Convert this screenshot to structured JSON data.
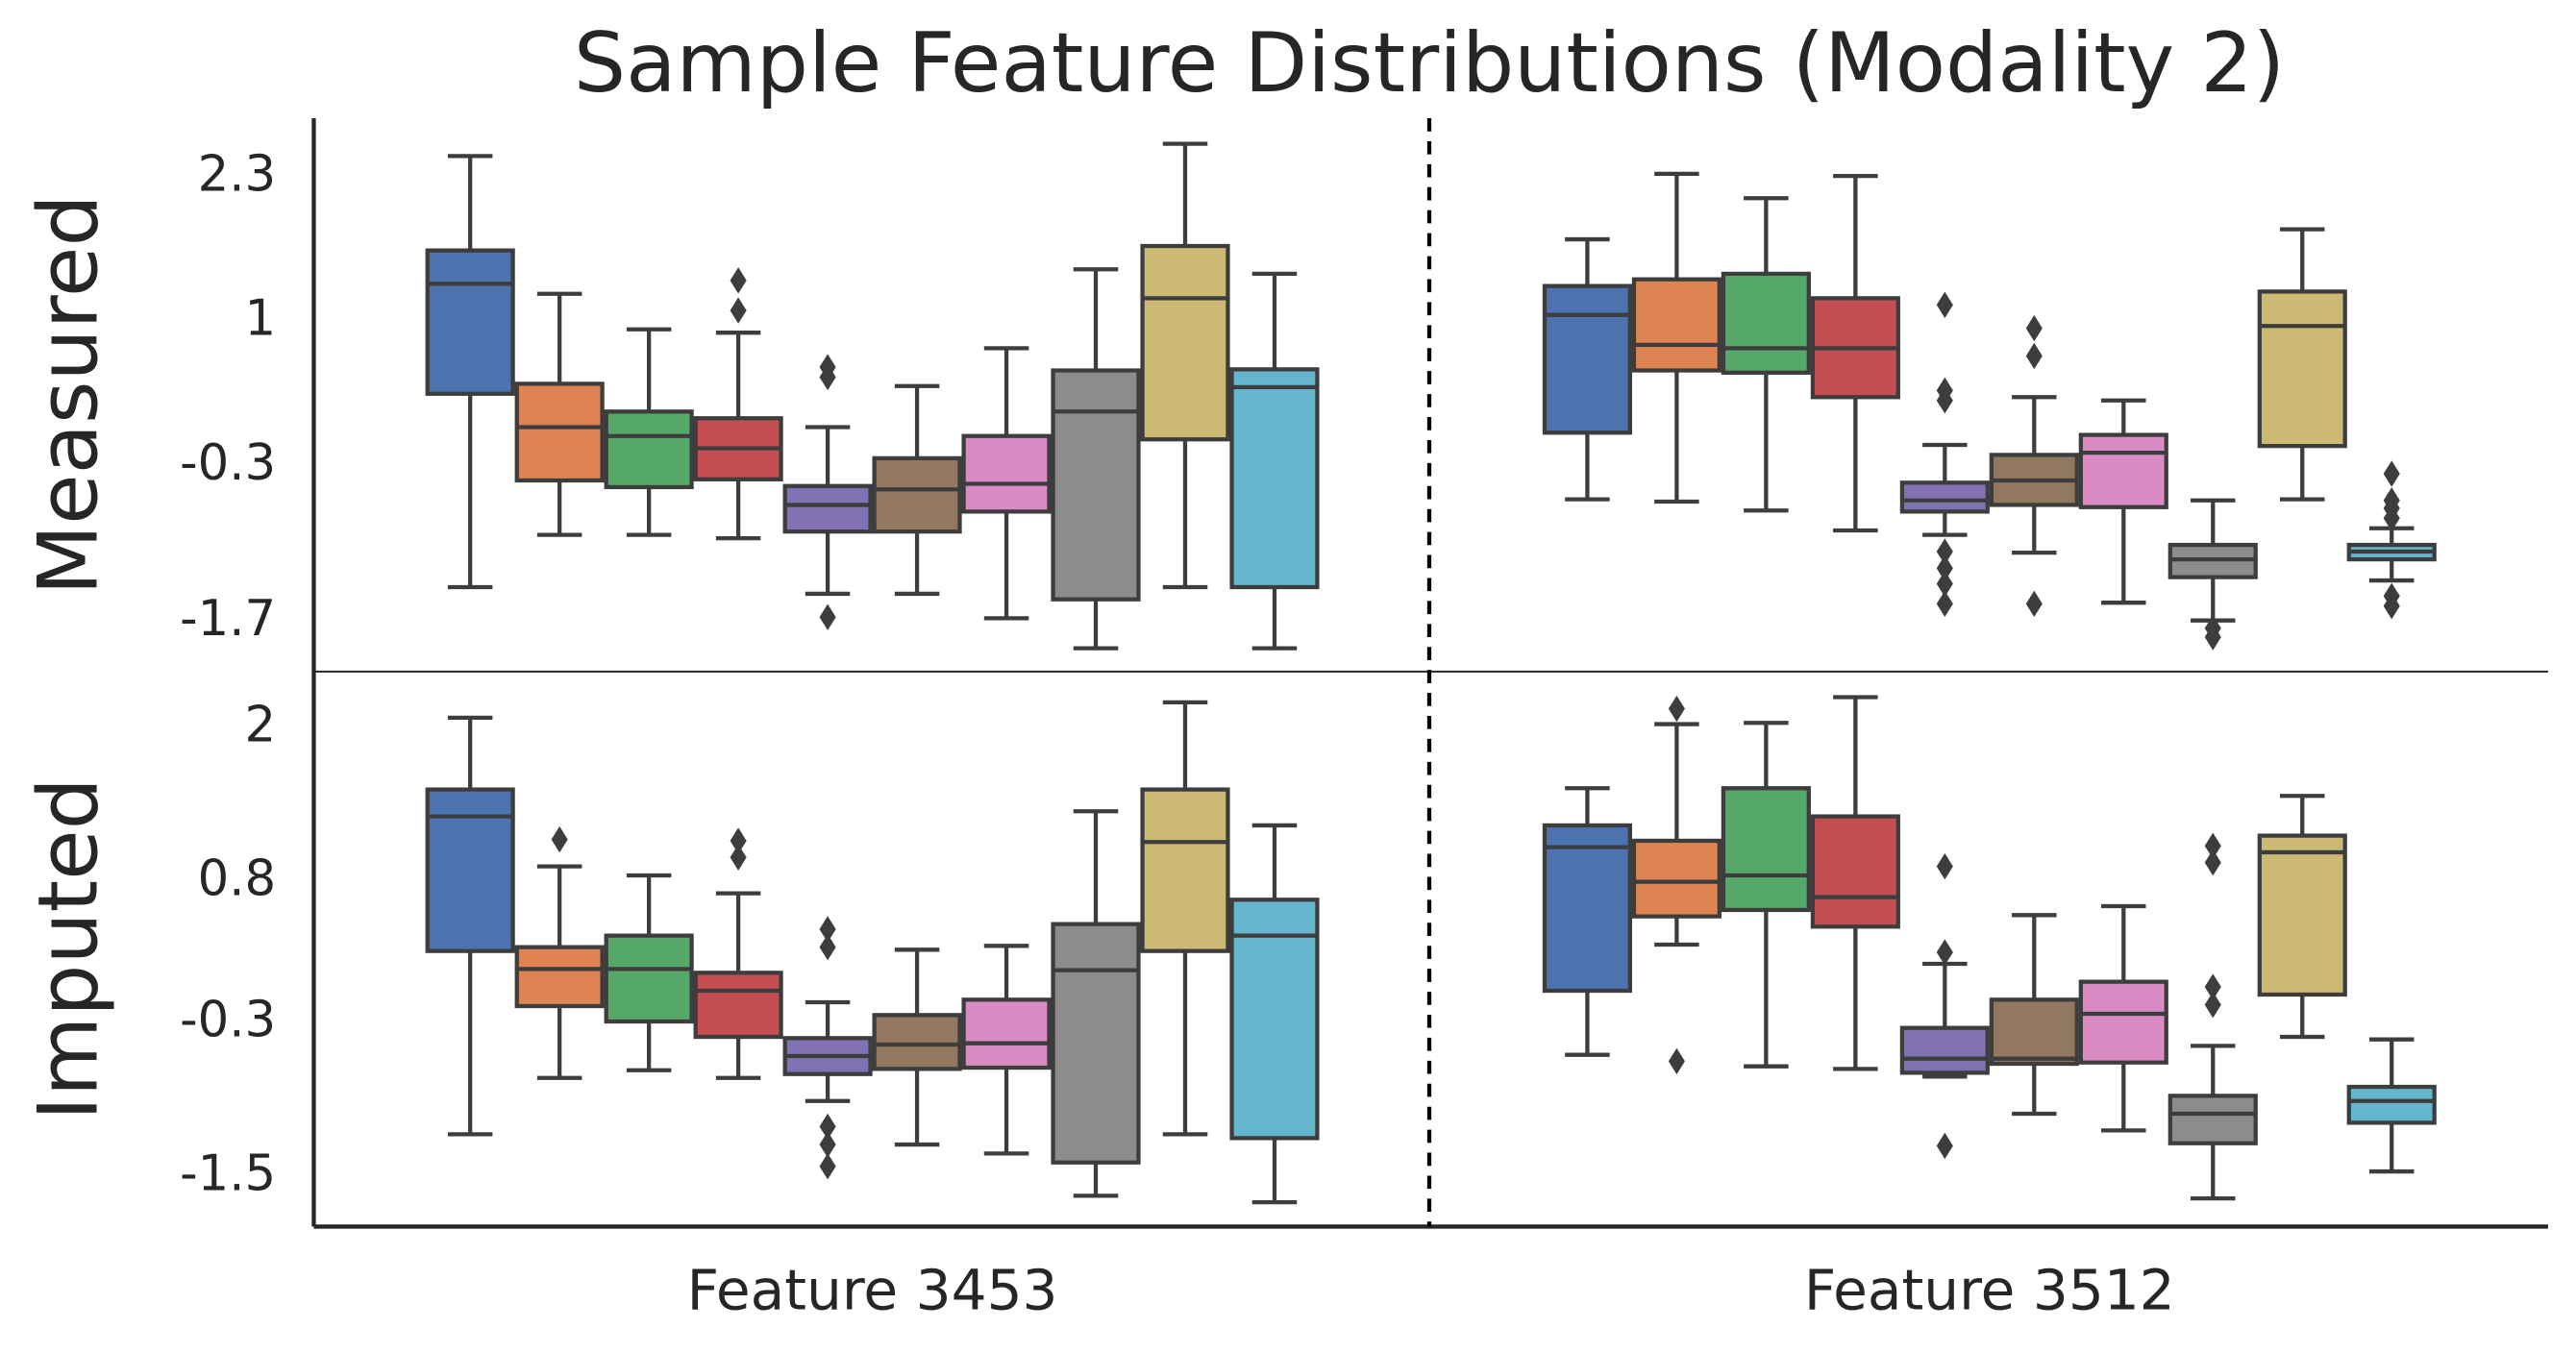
{
  "chart_data": {
    "type": "box",
    "title": "Sample Feature Distributions (Modality 2)",
    "categories": [
      "Feature 3453",
      "Feature 3512"
    ],
    "colors": [
      "#4c72b0",
      "#dd8452",
      "#55a868",
      "#c44e52",
      "#8172b3",
      "#937860",
      "#da8bc3",
      "#8c8c8c",
      "#ccb974",
      "#64b5cd"
    ],
    "panels": [
      {
        "ylabel": "Measured",
        "ylim": [
          -2.15,
          2.83
        ],
        "yticks": [
          2.3,
          1.0,
          -0.3,
          -1.7
        ],
        "boxes": [
          [
            {
              "whislo": -1.39,
              "q1": 0.35,
              "med": 1.34,
              "q3": 1.64,
              "whishi": 2.49,
              "fliers": []
            },
            {
              "whislo": -0.92,
              "q1": -0.43,
              "med": 0.05,
              "q3": 0.44,
              "whishi": 1.25,
              "fliers": []
            },
            {
              "whislo": -0.92,
              "q1": -0.49,
              "med": -0.03,
              "q3": 0.19,
              "whishi": 0.93,
              "fliers": []
            },
            {
              "whislo": -0.95,
              "q1": -0.42,
              "med": -0.14,
              "q3": 0.13,
              "whishi": 0.9,
              "fliers": [
                1.37,
                1.1
              ]
            },
            {
              "whislo": -1.45,
              "q1": -0.89,
              "med": -0.65,
              "q3": -0.48,
              "whishi": 0.05,
              "fliers": [
                0.59,
                0.5,
                -1.66
              ]
            },
            {
              "whislo": -1.45,
              "q1": -0.89,
              "med": -0.51,
              "q3": -0.23,
              "whishi": 0.42,
              "fliers": []
            },
            {
              "whislo": -1.67,
              "q1": -0.71,
              "med": -0.46,
              "q3": -0.03,
              "whishi": 0.76,
              "fliers": []
            },
            {
              "whislo": -1.94,
              "q1": -1.5,
              "med": 0.19,
              "q3": 0.56,
              "whishi": 1.47,
              "fliers": []
            },
            {
              "whislo": -1.39,
              "q1": -0.06,
              "med": 1.21,
              "q3": 1.68,
              "whishi": 2.6,
              "fliers": []
            },
            {
              "whislo": -1.94,
              "q1": -1.39,
              "med": 0.41,
              "q3": 0.57,
              "whishi": 1.43,
              "fliers": []
            }
          ],
          [
            {
              "whislo": -0.6,
              "q1": 0.0,
              "med": 1.06,
              "q3": 1.32,
              "whishi": 1.74,
              "fliers": []
            },
            {
              "whislo": -0.62,
              "q1": 0.56,
              "med": 0.79,
              "q3": 1.38,
              "whishi": 2.33,
              "fliers": []
            },
            {
              "whislo": -0.7,
              "q1": 0.54,
              "med": 0.76,
              "q3": 1.43,
              "whishi": 2.11,
              "fliers": []
            },
            {
              "whislo": -0.88,
              "q1": 0.32,
              "med": 0.76,
              "q3": 1.21,
              "whishi": 2.31,
              "fliers": []
            },
            {
              "whislo": -0.92,
              "q1": -0.71,
              "med": -0.61,
              "q3": -0.45,
              "whishi": -0.11,
              "fliers": [
                1.15,
                0.38,
                0.29,
                -1.07,
                -1.22,
                -1.36,
                -1.54
              ]
            },
            {
              "whislo": -1.08,
              "q1": -0.65,
              "med": -0.43,
              "q3": -0.2,
              "whishi": 0.32,
              "fliers": [
                0.94,
                0.69,
                -1.54
              ]
            },
            {
              "whislo": -1.53,
              "q1": -0.67,
              "med": -0.18,
              "q3": -0.02,
              "whishi": 0.29,
              "fliers": []
            },
            {
              "whislo": -1.69,
              "q1": -1.3,
              "med": -1.14,
              "q3": -1.01,
              "whishi": -0.61,
              "fliers": [
                -1.76,
                -1.84
              ]
            },
            {
              "whislo": -0.6,
              "q1": -0.12,
              "med": 0.96,
              "q3": 1.27,
              "whishi": 1.83,
              "fliers": []
            },
            {
              "whislo": -1.33,
              "q1": -1.14,
              "med": -1.07,
              "q3": -1.01,
              "whishi": -0.86,
              "fliers": [
                -0.77,
                -0.61,
                -0.68,
                -0.37,
                -1.47,
                -1.56
              ]
            }
          ]
        ]
      },
      {
        "ylabel": "Imputed",
        "ylim": [
          -1.89,
          2.44
        ],
        "yticks": [
          2.0,
          0.8,
          -0.3,
          -1.5
        ],
        "boxes": [
          [
            {
              "whislo": -1.17,
              "q1": 0.26,
              "med": 1.31,
              "q3": 1.52,
              "whishi": 2.08,
              "fliers": []
            },
            {
              "whislo": -0.73,
              "q1": -0.17,
              "med": 0.12,
              "q3": 0.29,
              "whishi": 0.92,
              "fliers": [
                1.13
              ]
            },
            {
              "whislo": -0.67,
              "q1": -0.29,
              "med": 0.12,
              "q3": 0.38,
              "whishi": 0.85,
              "fliers": []
            },
            {
              "whislo": -0.73,
              "q1": -0.41,
              "med": -0.05,
              "q3": 0.09,
              "whishi": 0.71,
              "fliers": [
                1.12,
                0.99
              ]
            },
            {
              "whislo": -0.91,
              "q1": -0.7,
              "med": -0.56,
              "q3": -0.42,
              "whishi": -0.14,
              "fliers": [
                0.43,
                0.29,
                -1.11,
                -1.25,
                -1.42
              ]
            },
            {
              "whislo": -1.25,
              "q1": -0.66,
              "med": -0.47,
              "q3": -0.24,
              "whishi": 0.27,
              "fliers": []
            },
            {
              "whislo": -1.32,
              "q1": -0.65,
              "med": -0.46,
              "q3": -0.12,
              "whishi": 0.3,
              "fliers": []
            },
            {
              "whislo": -1.65,
              "q1": -1.39,
              "med": 0.11,
              "q3": 0.47,
              "whishi": 1.35,
              "fliers": []
            },
            {
              "whislo": -1.17,
              "q1": 0.26,
              "med": 1.11,
              "q3": 1.52,
              "whishi": 2.2,
              "fliers": []
            },
            {
              "whislo": -1.7,
              "q1": -1.2,
              "med": 0.38,
              "q3": 0.66,
              "whishi": 1.24,
              "fliers": []
            }
          ],
          [
            {
              "whislo": -0.55,
              "q1": -0.05,
              "med": 1.07,
              "q3": 1.24,
              "whishi": 1.53,
              "fliers": []
            },
            {
              "whislo": 0.31,
              "q1": 0.53,
              "med": 0.8,
              "q3": 1.12,
              "whishi": 2.03,
              "fliers": [
                2.15,
                -0.6
              ]
            },
            {
              "whislo": -0.64,
              "q1": 0.58,
              "med": 0.85,
              "q3": 1.53,
              "whishi": 2.04,
              "fliers": []
            },
            {
              "whislo": -0.66,
              "q1": 0.45,
              "med": 0.68,
              "q3": 1.31,
              "whishi": 2.24,
              "fliers": []
            },
            {
              "whislo": -0.72,
              "q1": -0.69,
              "med": -0.58,
              "q3": -0.34,
              "whishi": 0.16,
              "fliers": [
                0.92,
                0.25,
                -1.26
              ]
            },
            {
              "whislo": -1.01,
              "q1": -0.62,
              "med": -0.58,
              "q3": -0.12,
              "whishi": 0.54,
              "fliers": []
            },
            {
              "whislo": -1.14,
              "q1": -0.61,
              "med": -0.23,
              "q3": 0.02,
              "whishi": 0.61,
              "fliers": []
            },
            {
              "whislo": -1.67,
              "q1": -1.24,
              "med": -1.01,
              "q3": -0.87,
              "whishi": -0.48,
              "fliers": [
                1.08,
                0.95,
                -0.02,
                -0.16
              ]
            },
            {
              "whislo": -0.41,
              "q1": -0.08,
              "med": 1.03,
              "q3": 1.16,
              "whishi": 1.47,
              "fliers": []
            },
            {
              "whislo": -1.46,
              "q1": -1.08,
              "med": -0.91,
              "q3": -0.8,
              "whishi": -0.43,
              "fliers": []
            }
          ]
        ]
      }
    ]
  }
}
